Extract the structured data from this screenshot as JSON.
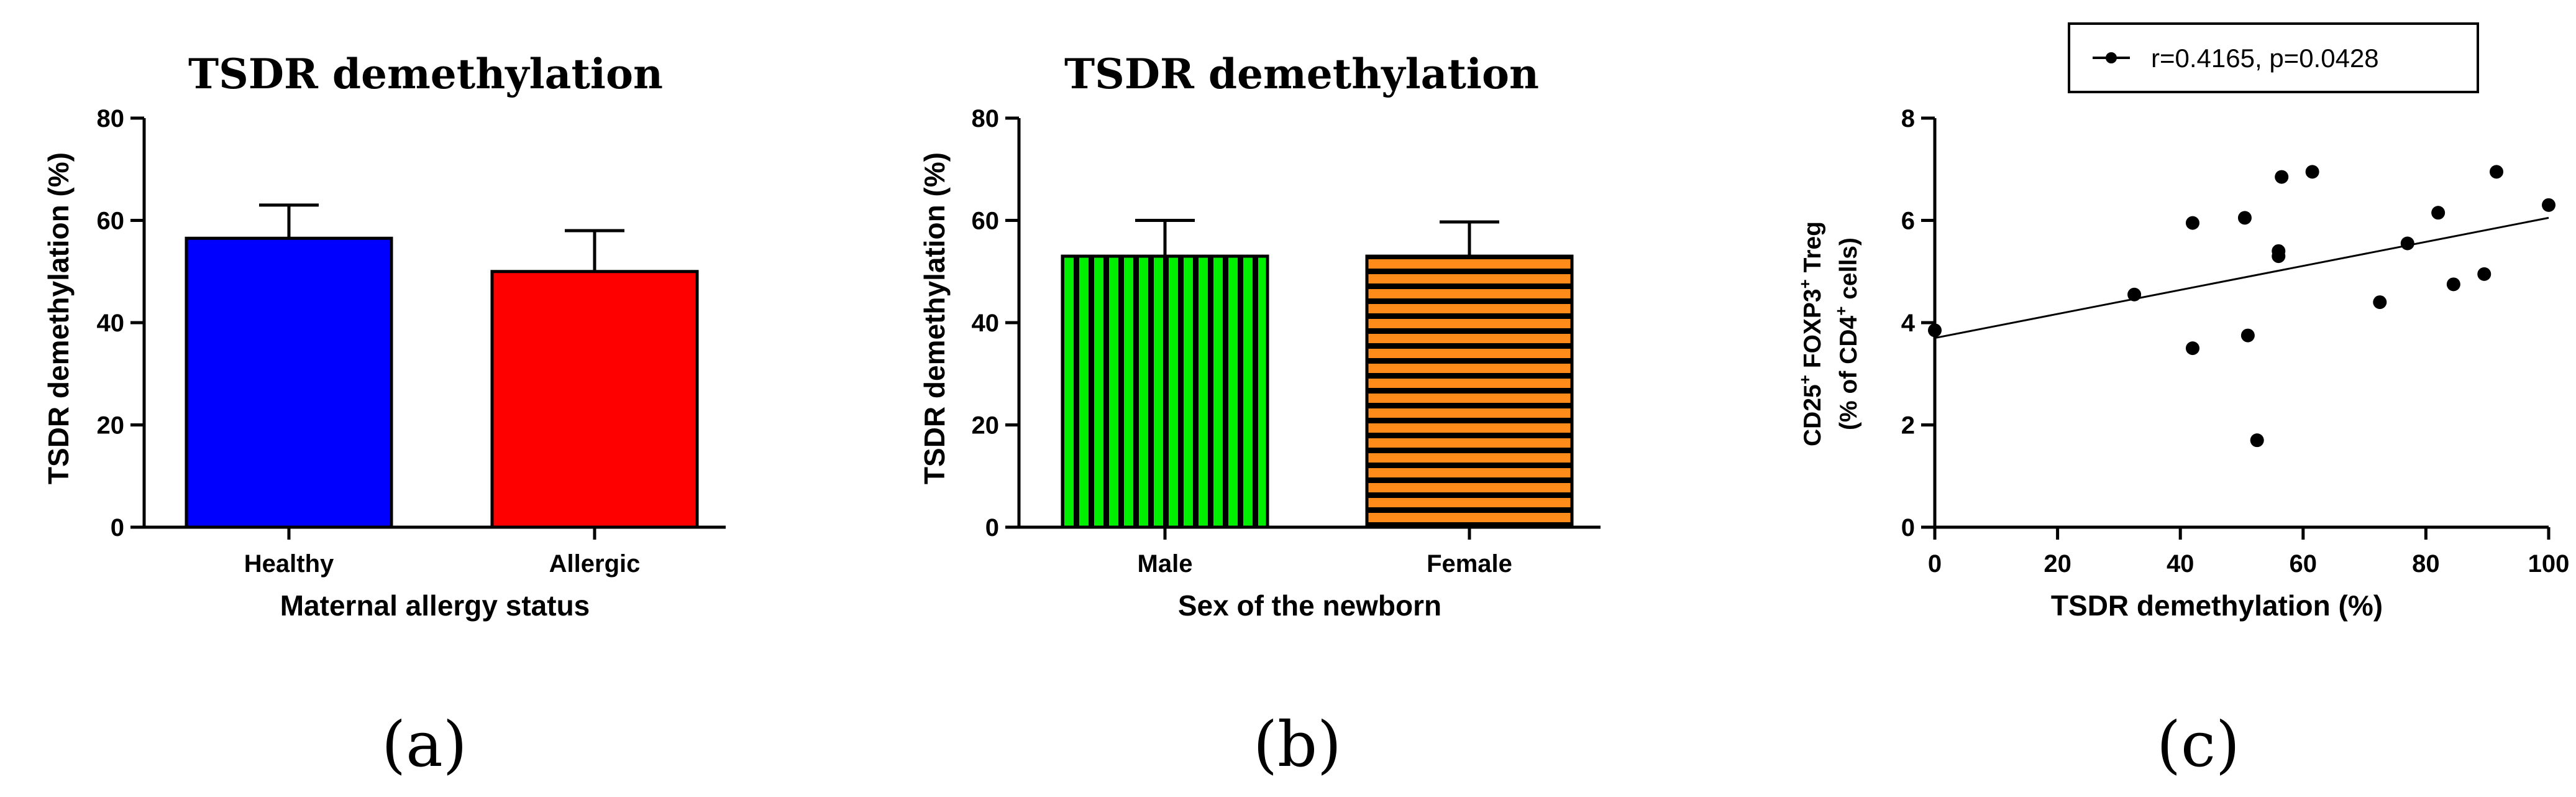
{
  "chart_data": [
    {
      "type": "bar",
      "panel": "(a)",
      "title": "TSDR demethylation",
      "xlabel": "Maternal allergy status",
      "ylabel": "TSDR demethylation  (%)",
      "ylim": [
        0,
        80
      ],
      "yticks": [
        "0",
        "20",
        "40",
        "60",
        "80"
      ],
      "categories": [
        "Healthy",
        "Allergic"
      ],
      "values": [
        56.5,
        50
      ],
      "errors": [
        6.5,
        8
      ],
      "colors": [
        "#0000ff",
        "#ff0000"
      ]
    },
    {
      "type": "bar",
      "panel": "(b)",
      "title": "TSDR demethylation",
      "xlabel": "Sex of the newborn",
      "ylabel": "TSDR demethylation  (%)",
      "ylim": [
        0,
        80
      ],
      "yticks": [
        "0",
        "20",
        "40",
        "60",
        "80"
      ],
      "categories": [
        "Male",
        "Female"
      ],
      "values": [
        53,
        53
      ],
      "errors": [
        7,
        6.7
      ],
      "colors": [
        "#00ee00",
        "#ff8c1a"
      ]
    },
    {
      "type": "scatter",
      "panel": "(c)",
      "xlabel": "TSDR demethylation (%)",
      "ylabel_line1": {
        "a": "CD25",
        "b": "+",
        "c": " FOXP3",
        "d": "+",
        "e": " Treg"
      },
      "ylabel_line2": {
        "a": "(% of CD4",
        "b": "+",
        "c": " cells)"
      },
      "xlim": [
        0,
        100
      ],
      "ylim": [
        0,
        8
      ],
      "xticks": [
        "0",
        "20",
        "40",
        "60",
        "80",
        "100"
      ],
      "yticks": [
        "0",
        "2",
        "4",
        "6",
        "8"
      ],
      "legend": "r=0.4165, p=0.0428",
      "legend_position": "top-center",
      "fit_line": {
        "x": [
          0,
          100
        ],
        "y": [
          3.7,
          6.05
        ]
      },
      "points": [
        {
          "x": 0,
          "y": 3.85
        },
        {
          "x": 32.5,
          "y": 4.55
        },
        {
          "x": 42,
          "y": 3.5
        },
        {
          "x": 42,
          "y": 5.95
        },
        {
          "x": 50.5,
          "y": 6.05
        },
        {
          "x": 51,
          "y": 3.75
        },
        {
          "x": 52.5,
          "y": 1.7
        },
        {
          "x": 56,
          "y": 5.4
        },
        {
          "x": 56,
          "y": 5.3
        },
        {
          "x": 56.5,
          "y": 6.85
        },
        {
          "x": 61.5,
          "y": 6.95
        },
        {
          "x": 72.5,
          "y": 4.4
        },
        {
          "x": 77,
          "y": 5.55
        },
        {
          "x": 82,
          "y": 6.15
        },
        {
          "x": 84.5,
          "y": 4.75
        },
        {
          "x": 89.5,
          "y": 4.95
        },
        {
          "x": 91.5,
          "y": 6.95
        },
        {
          "x": 100,
          "y": 6.3
        }
      ]
    }
  ]
}
